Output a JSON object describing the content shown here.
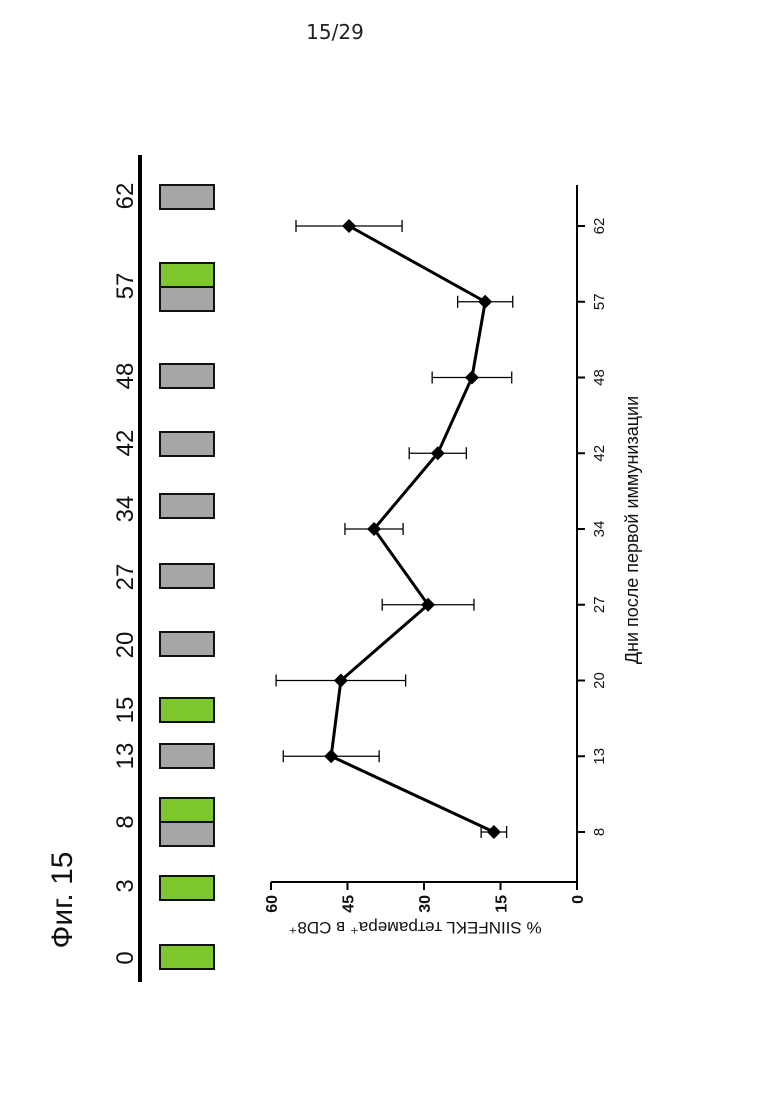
{
  "page_number": "15/29",
  "figure_label": "Фиг. 15",
  "colors": {
    "prime": "#7dc62b",
    "boost": "#a6a6a6",
    "line": "#000000"
  },
  "schedule": [
    {
      "day": "0",
      "parts": [
        "green"
      ]
    },
    {
      "day": "3",
      "parts": [
        "green"
      ]
    },
    {
      "day": "8",
      "parts": [
        "green",
        "gray"
      ]
    },
    {
      "day": "13",
      "parts": [
        "gray"
      ]
    },
    {
      "day": "15",
      "parts": [
        "green"
      ]
    },
    {
      "day": "20",
      "parts": [
        "gray"
      ]
    },
    {
      "day": "27",
      "parts": [
        "gray"
      ]
    },
    {
      "day": "34",
      "parts": [
        "gray"
      ]
    },
    {
      "day": "42",
      "parts": [
        "gray"
      ]
    },
    {
      "day": "48",
      "parts": [
        "gray"
      ]
    },
    {
      "day": "57",
      "parts": [
        "green",
        "gray"
      ]
    },
    {
      "day": "62",
      "parts": [
        "gray"
      ]
    }
  ],
  "chart_data": {
    "type": "line",
    "orientation": "rotated-90",
    "xlabel": "Дни после первой иммунизации",
    "ylabel": "% SIINFEKL тетрамера⁺ в CD8⁺",
    "categories": [
      "8",
      "13",
      "20",
      "27",
      "34",
      "42",
      "48",
      "57",
      "62"
    ],
    "values": [
      16.3,
      48.2,
      46.3,
      29.2,
      39.8,
      27.3,
      20.6,
      18.0,
      44.7
    ],
    "errors": [
      2.5,
      9.4,
      12.7,
      9.0,
      5.7,
      5.6,
      7.8,
      5.4,
      10.4
    ],
    "ylim": [
      0,
      60
    ],
    "yticks": [
      "0",
      "15",
      "30",
      "45",
      "60"
    ],
    "grid": false,
    "marker": "diamond"
  }
}
